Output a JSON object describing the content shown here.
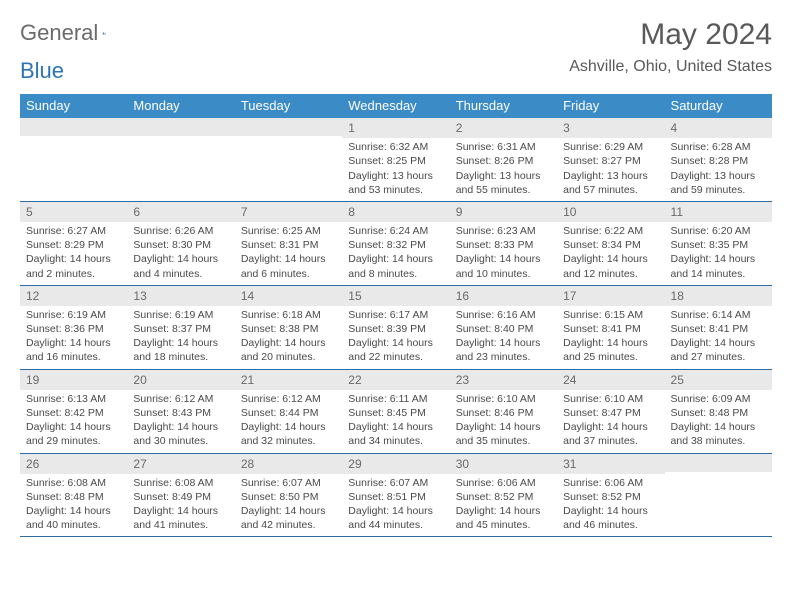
{
  "logo": {
    "part1": "General",
    "part2": "Blue"
  },
  "title": "May 2024",
  "location": "Ashville, Ohio, United States",
  "colors": {
    "header_bg": "#3b8bc7",
    "header_text": "#ffffff",
    "daynum_bg": "#e9e9e9",
    "week_border": "#2e6ca4",
    "title_color": "#595959",
    "body_text": "#4a4a4a"
  },
  "day_headers": [
    "Sunday",
    "Monday",
    "Tuesday",
    "Wednesday",
    "Thursday",
    "Friday",
    "Saturday"
  ],
  "weeks": [
    [
      {
        "num": "",
        "lines": []
      },
      {
        "num": "",
        "lines": []
      },
      {
        "num": "",
        "lines": []
      },
      {
        "num": "1",
        "lines": [
          "Sunrise: 6:32 AM",
          "Sunset: 8:25 PM",
          "Daylight: 13 hours and 53 minutes."
        ]
      },
      {
        "num": "2",
        "lines": [
          "Sunrise: 6:31 AM",
          "Sunset: 8:26 PM",
          "Daylight: 13 hours and 55 minutes."
        ]
      },
      {
        "num": "3",
        "lines": [
          "Sunrise: 6:29 AM",
          "Sunset: 8:27 PM",
          "Daylight: 13 hours and 57 minutes."
        ]
      },
      {
        "num": "4",
        "lines": [
          "Sunrise: 6:28 AM",
          "Sunset: 8:28 PM",
          "Daylight: 13 hours and 59 minutes."
        ]
      }
    ],
    [
      {
        "num": "5",
        "lines": [
          "Sunrise: 6:27 AM",
          "Sunset: 8:29 PM",
          "Daylight: 14 hours and 2 minutes."
        ]
      },
      {
        "num": "6",
        "lines": [
          "Sunrise: 6:26 AM",
          "Sunset: 8:30 PM",
          "Daylight: 14 hours and 4 minutes."
        ]
      },
      {
        "num": "7",
        "lines": [
          "Sunrise: 6:25 AM",
          "Sunset: 8:31 PM",
          "Daylight: 14 hours and 6 minutes."
        ]
      },
      {
        "num": "8",
        "lines": [
          "Sunrise: 6:24 AM",
          "Sunset: 8:32 PM",
          "Daylight: 14 hours and 8 minutes."
        ]
      },
      {
        "num": "9",
        "lines": [
          "Sunrise: 6:23 AM",
          "Sunset: 8:33 PM",
          "Daylight: 14 hours and 10 minutes."
        ]
      },
      {
        "num": "10",
        "lines": [
          "Sunrise: 6:22 AM",
          "Sunset: 8:34 PM",
          "Daylight: 14 hours and 12 minutes."
        ]
      },
      {
        "num": "11",
        "lines": [
          "Sunrise: 6:20 AM",
          "Sunset: 8:35 PM",
          "Daylight: 14 hours and 14 minutes."
        ]
      }
    ],
    [
      {
        "num": "12",
        "lines": [
          "Sunrise: 6:19 AM",
          "Sunset: 8:36 PM",
          "Daylight: 14 hours and 16 minutes."
        ]
      },
      {
        "num": "13",
        "lines": [
          "Sunrise: 6:19 AM",
          "Sunset: 8:37 PM",
          "Daylight: 14 hours and 18 minutes."
        ]
      },
      {
        "num": "14",
        "lines": [
          "Sunrise: 6:18 AM",
          "Sunset: 8:38 PM",
          "Daylight: 14 hours and 20 minutes."
        ]
      },
      {
        "num": "15",
        "lines": [
          "Sunrise: 6:17 AM",
          "Sunset: 8:39 PM",
          "Daylight: 14 hours and 22 minutes."
        ]
      },
      {
        "num": "16",
        "lines": [
          "Sunrise: 6:16 AM",
          "Sunset: 8:40 PM",
          "Daylight: 14 hours and 23 minutes."
        ]
      },
      {
        "num": "17",
        "lines": [
          "Sunrise: 6:15 AM",
          "Sunset: 8:41 PM",
          "Daylight: 14 hours and 25 minutes."
        ]
      },
      {
        "num": "18",
        "lines": [
          "Sunrise: 6:14 AM",
          "Sunset: 8:41 PM",
          "Daylight: 14 hours and 27 minutes."
        ]
      }
    ],
    [
      {
        "num": "19",
        "lines": [
          "Sunrise: 6:13 AM",
          "Sunset: 8:42 PM",
          "Daylight: 14 hours and 29 minutes."
        ]
      },
      {
        "num": "20",
        "lines": [
          "Sunrise: 6:12 AM",
          "Sunset: 8:43 PM",
          "Daylight: 14 hours and 30 minutes."
        ]
      },
      {
        "num": "21",
        "lines": [
          "Sunrise: 6:12 AM",
          "Sunset: 8:44 PM",
          "Daylight: 14 hours and 32 minutes."
        ]
      },
      {
        "num": "22",
        "lines": [
          "Sunrise: 6:11 AM",
          "Sunset: 8:45 PM",
          "Daylight: 14 hours and 34 minutes."
        ]
      },
      {
        "num": "23",
        "lines": [
          "Sunrise: 6:10 AM",
          "Sunset: 8:46 PM",
          "Daylight: 14 hours and 35 minutes."
        ]
      },
      {
        "num": "24",
        "lines": [
          "Sunrise: 6:10 AM",
          "Sunset: 8:47 PM",
          "Daylight: 14 hours and 37 minutes."
        ]
      },
      {
        "num": "25",
        "lines": [
          "Sunrise: 6:09 AM",
          "Sunset: 8:48 PM",
          "Daylight: 14 hours and 38 minutes."
        ]
      }
    ],
    [
      {
        "num": "26",
        "lines": [
          "Sunrise: 6:08 AM",
          "Sunset: 8:48 PM",
          "Daylight: 14 hours and 40 minutes."
        ]
      },
      {
        "num": "27",
        "lines": [
          "Sunrise: 6:08 AM",
          "Sunset: 8:49 PM",
          "Daylight: 14 hours and 41 minutes."
        ]
      },
      {
        "num": "28",
        "lines": [
          "Sunrise: 6:07 AM",
          "Sunset: 8:50 PM",
          "Daylight: 14 hours and 42 minutes."
        ]
      },
      {
        "num": "29",
        "lines": [
          "Sunrise: 6:07 AM",
          "Sunset: 8:51 PM",
          "Daylight: 14 hours and 44 minutes."
        ]
      },
      {
        "num": "30",
        "lines": [
          "Sunrise: 6:06 AM",
          "Sunset: 8:52 PM",
          "Daylight: 14 hours and 45 minutes."
        ]
      },
      {
        "num": "31",
        "lines": [
          "Sunrise: 6:06 AM",
          "Sunset: 8:52 PM",
          "Daylight: 14 hours and 46 minutes."
        ]
      },
      {
        "num": "",
        "lines": []
      }
    ]
  ]
}
